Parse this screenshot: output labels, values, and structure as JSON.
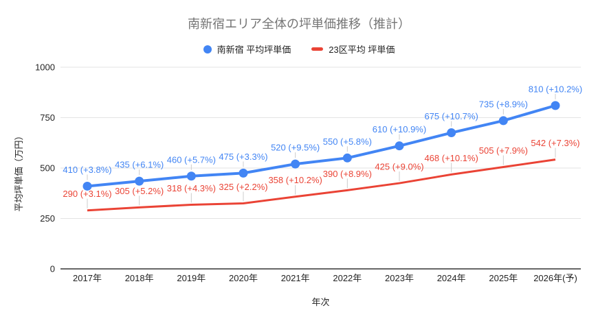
{
  "title": "南新宿エリア全体の坪単価推移（推計）",
  "legend": [
    {
      "label": "南新宿 平均坪単価",
      "color": "#4285f4",
      "marker": "circle"
    },
    {
      "label": "23区平均 坪単価",
      "color": "#ea4335",
      "marker": "line"
    }
  ],
  "colors": {
    "series_blue": "#4285f4",
    "series_red": "#ea4335",
    "title_text": "#757575",
    "axis_text": "#222222",
    "gridline": "#e3e3e3",
    "baseline": "#333333",
    "leader_line": "#cccccc",
    "background": "#ffffff"
  },
  "chart_data": {
    "type": "line",
    "title": "南新宿エリア全体の坪単価推移（推計）",
    "xlabel": "年次",
    "ylabel": "平均坪単価（万円）",
    "x": [
      "2017年",
      "2018年",
      "2019年",
      "2020年",
      "2021年",
      "2022年",
      "2023年",
      "2024年",
      "2025年",
      "2026年(予)"
    ],
    "yticks": [
      0,
      250,
      500,
      750,
      1000
    ],
    "ylim": [
      0,
      1000
    ],
    "grid": true,
    "legend_position": "top",
    "series": [
      {
        "name": "南新宿 平均坪単価",
        "slug": "minami-shinjuku",
        "color": "#4285f4",
        "point_marker": true,
        "values": [
          410,
          435,
          460,
          475,
          520,
          550,
          610,
          675,
          735,
          810
        ],
        "labels": [
          "410 (+3.8%)",
          "435 (+6.1%)",
          "460 (+5.7%)",
          "475 (+3.3%)",
          "520 (+9.5%)",
          "550 (+5.8%)",
          "610 (+10.9%)",
          "675 (+10.7%)",
          "735 (+8.9%)",
          "810 (+10.2%)"
        ]
      },
      {
        "name": "23区平均 坪単価",
        "slug": "23ku-average",
        "color": "#ea4335",
        "point_marker": false,
        "values": [
          290,
          305,
          318,
          325,
          358,
          390,
          425,
          468,
          505,
          542
        ],
        "labels": [
          "290 (+3.1%)",
          "305 (+5.2%)",
          "318 (+4.3%)",
          "325 (+2.2%)",
          "358 (+10.2%)",
          "390 (+8.9%)",
          "425 (+9.0%)",
          "468 (+10.1%)",
          "505 (+7.9%)",
          "542 (+7.3%)"
        ]
      }
    ]
  }
}
